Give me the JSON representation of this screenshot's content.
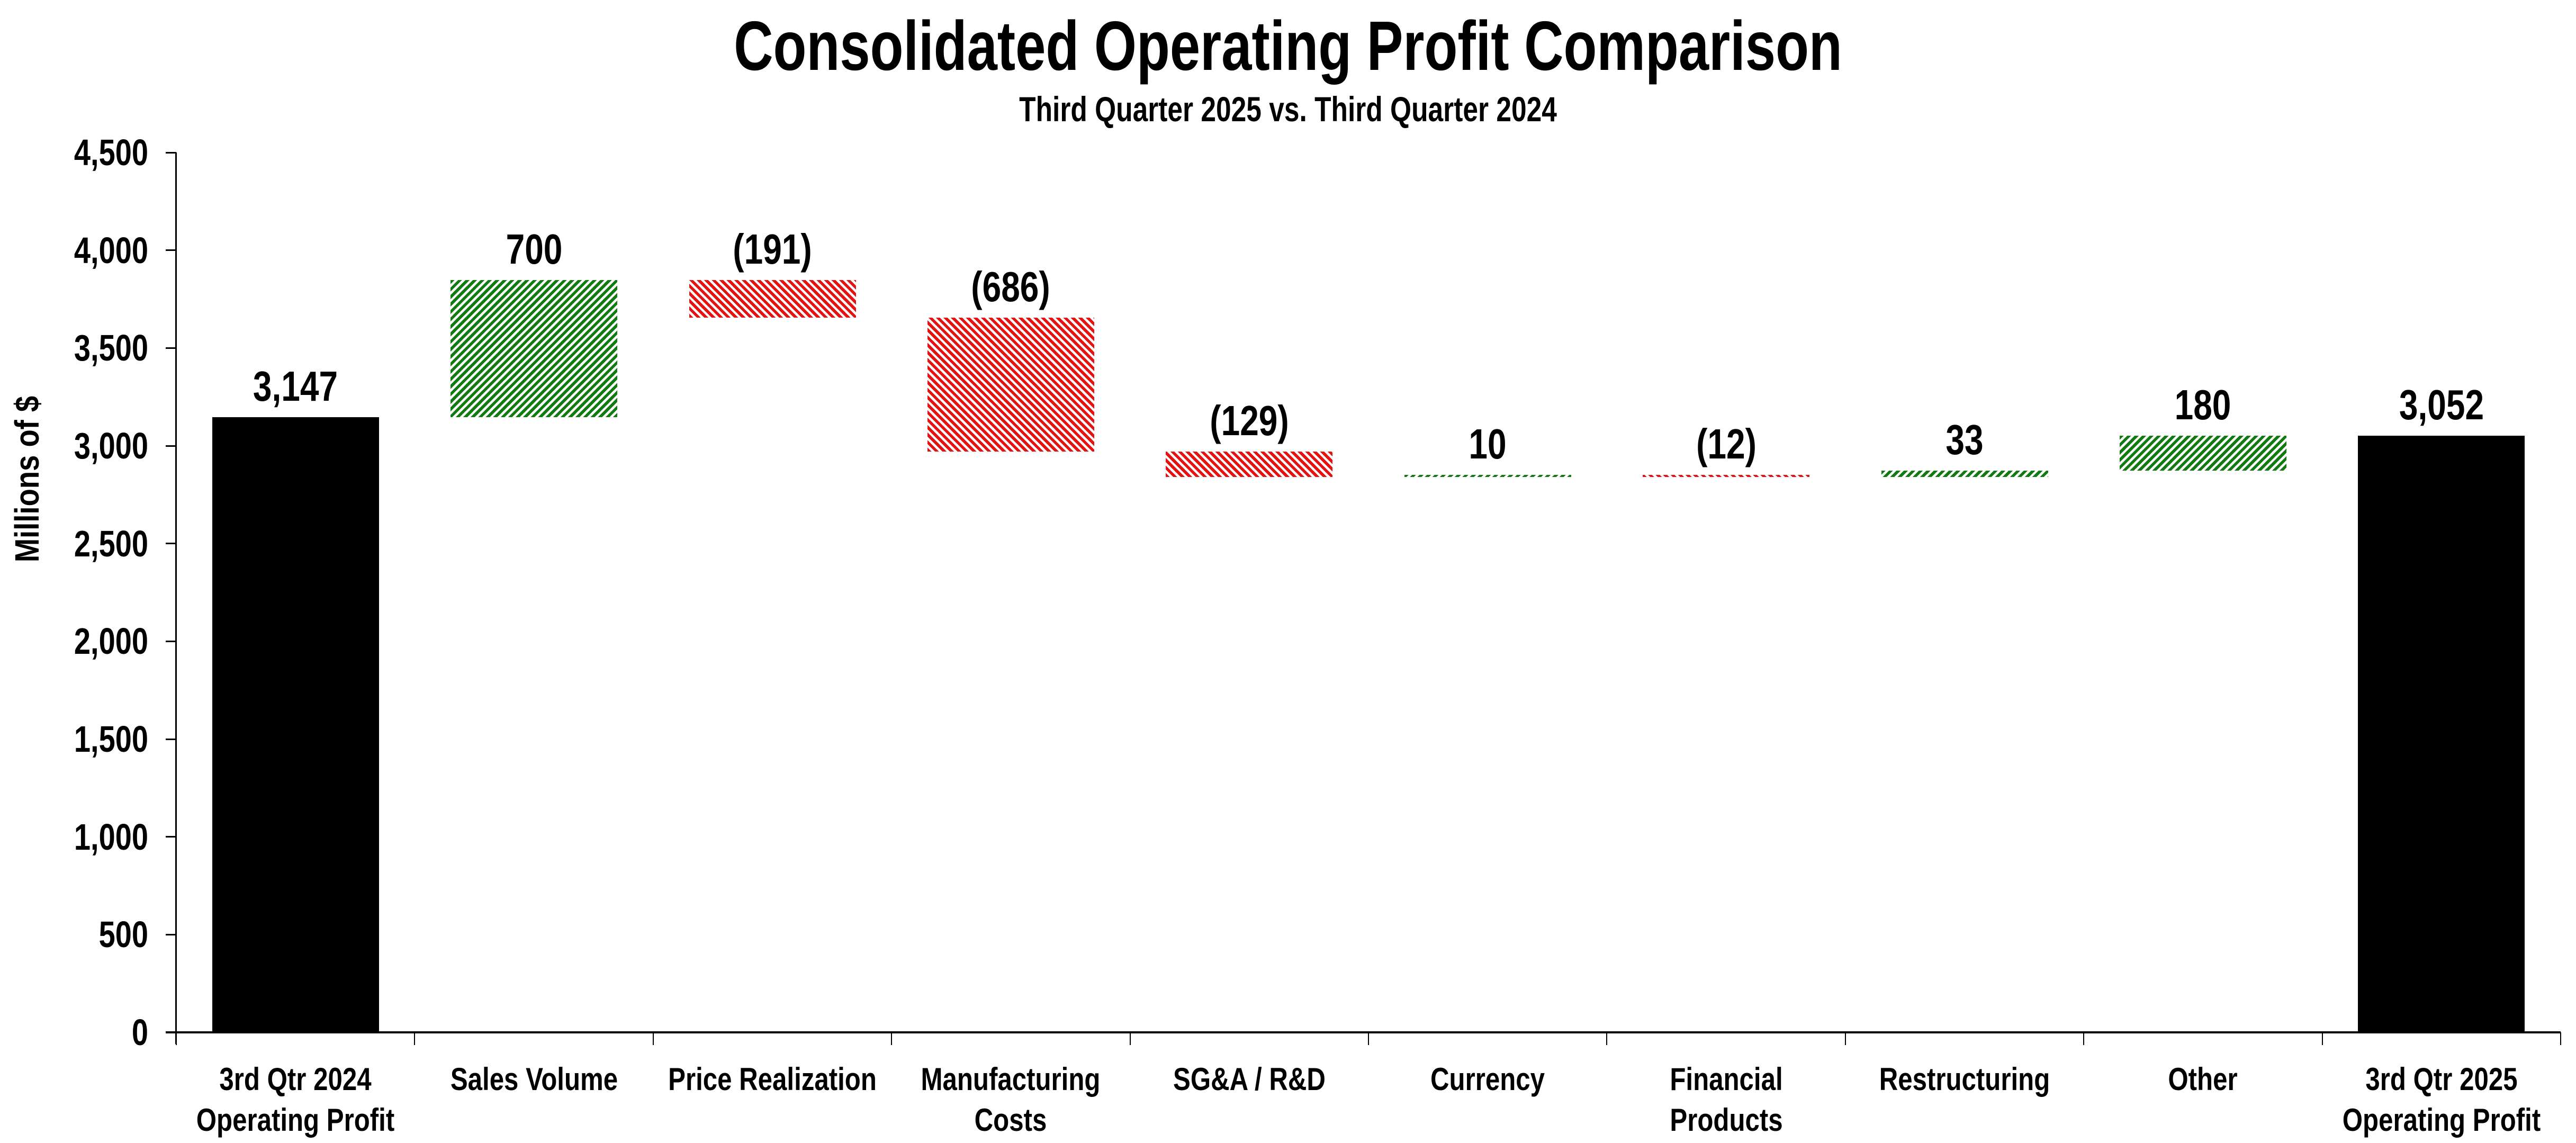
{
  "chart_data": {
    "type": "bar",
    "subtype": "waterfall",
    "title": "Consolidated Operating Profit Comparison",
    "subtitle": "Third Quarter 2025 vs. Third Quarter 2024",
    "ylabel": "Millions of $",
    "ylim": [
      0,
      4500
    ],
    "ytick_step": 500,
    "y_tick_labels": [
      "0",
      "500",
      "1,000",
      "1,500",
      "2,000",
      "2,500",
      "3,000",
      "3,500",
      "4,000",
      "4,500"
    ],
    "grid": false,
    "legend": false,
    "bars": [
      {
        "category": "3rd Qtr 2024 Operating Profit",
        "category_lines": [
          "3rd Qtr 2024",
          "Operating Profit"
        ],
        "value": 3147,
        "label": "3,147",
        "kind": "total"
      },
      {
        "category": "Sales Volume",
        "category_lines": [
          "Sales Volume"
        ],
        "value": 700,
        "label": "700",
        "kind": "increase"
      },
      {
        "category": "Price Realization",
        "category_lines": [
          "Price Realization"
        ],
        "value": -191,
        "label": "(191)",
        "kind": "decrease"
      },
      {
        "category": "Manufacturing Costs",
        "category_lines": [
          "Manufacturing",
          "Costs"
        ],
        "value": -686,
        "label": "(686)",
        "kind": "decrease"
      },
      {
        "category": "SG&A / R&D",
        "category_lines": [
          "SG&A / R&D"
        ],
        "value": -129,
        "label": "(129)",
        "kind": "decrease"
      },
      {
        "category": "Currency",
        "category_lines": [
          "Currency"
        ],
        "value": 10,
        "label": "10",
        "kind": "increase"
      },
      {
        "category": "Financial Products",
        "category_lines": [
          "Financial",
          "Products"
        ],
        "value": -12,
        "label": "(12)",
        "kind": "decrease"
      },
      {
        "category": "Restructuring",
        "category_lines": [
          "Restructuring"
        ],
        "value": 33,
        "label": "33",
        "kind": "increase"
      },
      {
        "category": "Other",
        "category_lines": [
          "Other"
        ],
        "value": 180,
        "label": "180",
        "kind": "increase"
      },
      {
        "category": "3rd Qtr 2025 Operating Profit",
        "category_lines": [
          "3rd Qtr 2025",
          "Operating Profit"
        ],
        "value": 3052,
        "label": "3,052",
        "kind": "total"
      }
    ],
    "colors": {
      "total": "#000000",
      "increase": "#117a11",
      "decrease": "#e51212",
      "hatch_gap": "#ffffff"
    }
  }
}
